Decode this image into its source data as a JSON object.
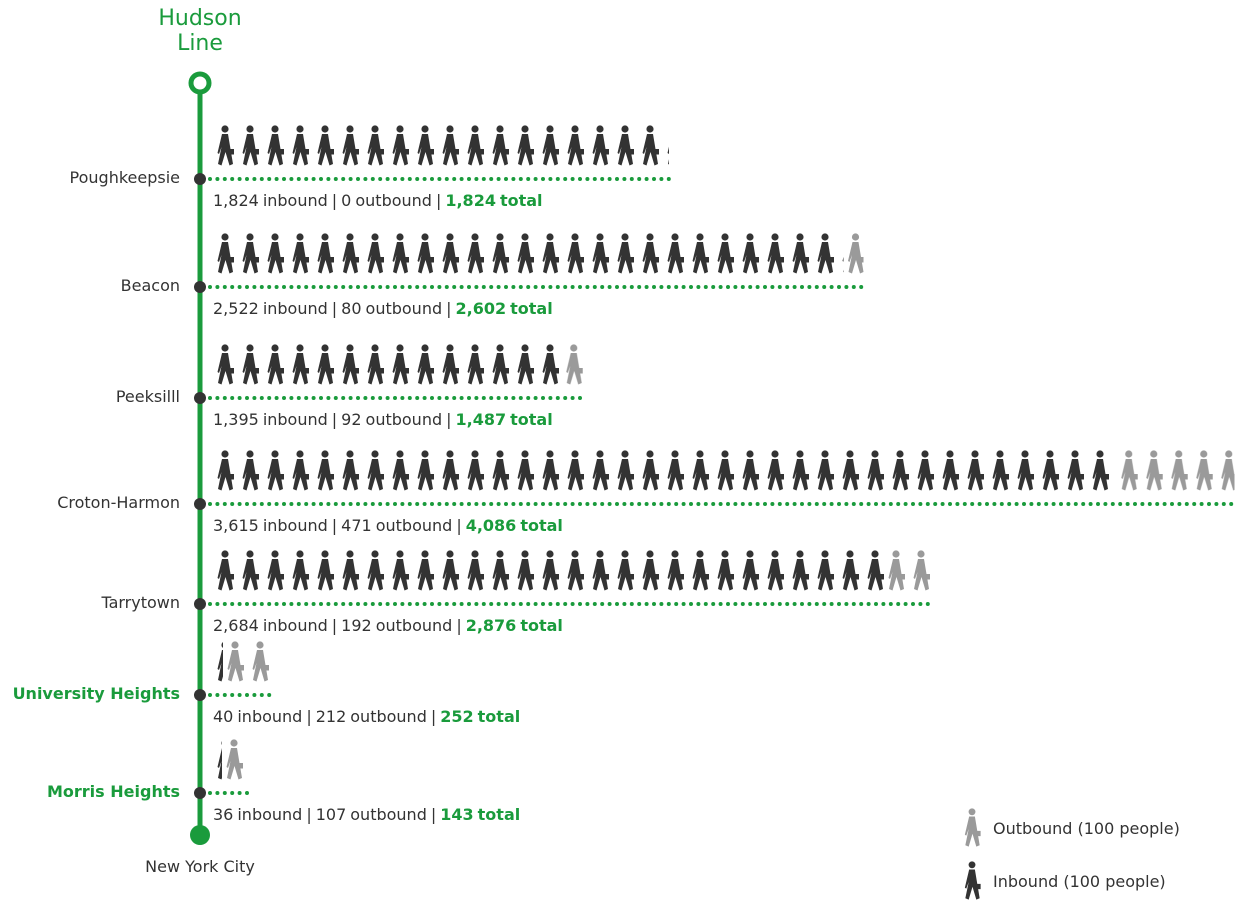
{
  "chart_data": {
    "type": "pictogram",
    "title": "Hudson Line",
    "end_label": "New York City",
    "line_color": "#1a9b3c",
    "categories": [
      "Poughkeepsie",
      "Beacon",
      "Peeksilll",
      "Croton-Harmon",
      "Tarrytown",
      "University Heights",
      "Morris Heights"
    ],
    "highlight": [
      false,
      false,
      false,
      false,
      false,
      true,
      true
    ],
    "unit": 100,
    "separator": "|",
    "series": [
      {
        "name": "Inbound (100 people)",
        "label": "inbound",
        "color": "#333333",
        "values": [
          1824,
          2522,
          1395,
          3615,
          2684,
          40,
          36
        ],
        "value_labels": [
          "1,824",
          "2,522",
          "1,395",
          "3,615",
          "2,684",
          "40",
          "36"
        ]
      },
      {
        "name": "Outbound (100 people)",
        "label": "outbound",
        "color": "#9a9a9a",
        "values": [
          0,
          80,
          92,
          471,
          192,
          212,
          107
        ],
        "value_labels": [
          "0",
          "80",
          "92",
          "471",
          "192",
          "212",
          "107"
        ]
      }
    ],
    "total": {
      "label": "total",
      "values": [
        1824,
        2602,
        1487,
        4086,
        2876,
        252,
        143
      ],
      "value_labels": [
        "1,824",
        "2,602",
        "1,487",
        "4,086",
        "2,876",
        "252",
        "143"
      ]
    }
  }
}
